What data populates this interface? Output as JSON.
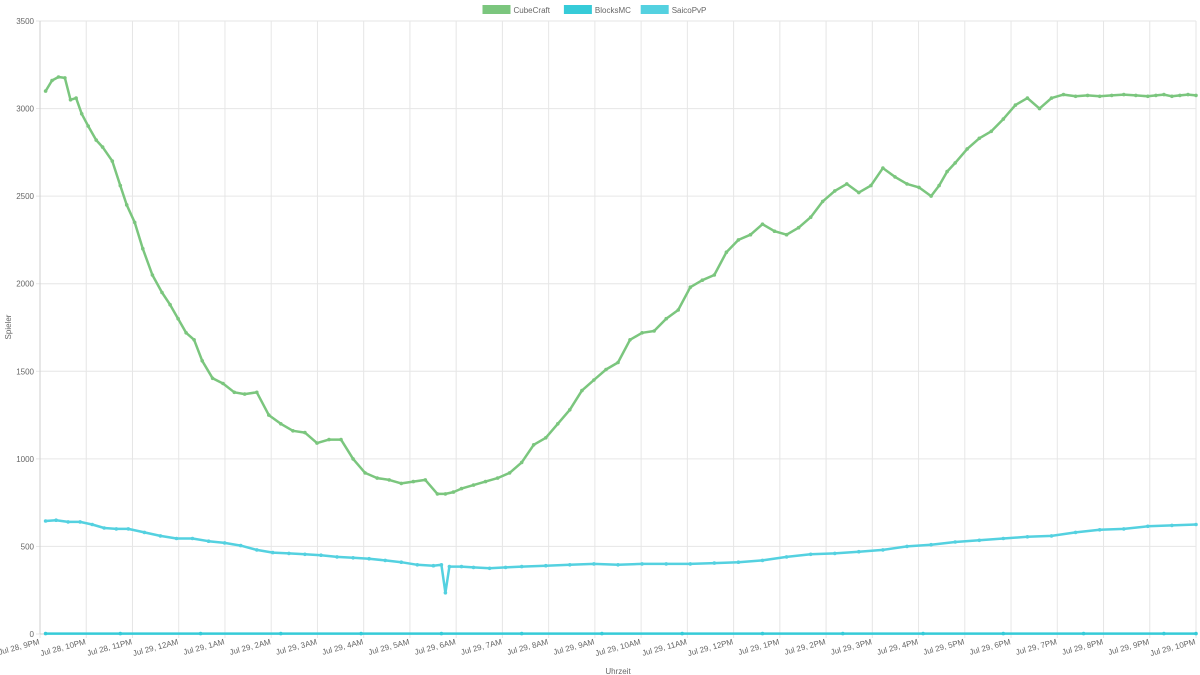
{
  "chart_data": {
    "type": "line",
    "xlabel": "Uhrzeit",
    "ylabel": "Spieler",
    "ylim": [
      0,
      3500
    ],
    "yticks": [
      0,
      500,
      1000,
      1500,
      2000,
      2500,
      3000,
      3500
    ],
    "xlim": [
      0,
      1440
    ],
    "xtick_labels": [
      "Jul 28, 9PM",
      "Jul 28, 10PM",
      "Jul 28, 11PM",
      "Jul 29, 12AM",
      "Jul 29, 1AM",
      "Jul 29, 2AM",
      "Jul 29, 3AM",
      "Jul 29, 4AM",
      "Jul 29, 5AM",
      "Jul 29, 6AM",
      "Jul 29, 7AM",
      "Jul 29, 8AM",
      "Jul 29, 9AM",
      "Jul 29, 10AM",
      "Jul 29, 11AM",
      "Jul 29, 12PM",
      "Jul 29, 1PM",
      "Jul 29, 2PM",
      "Jul 29, 3PM",
      "Jul 29, 4PM",
      "Jul 29, 5PM",
      "Jul 29, 6PM",
      "Jul 29, 7PM",
      "Jul 29, 8PM",
      "Jul 29, 9PM",
      "Jul 29, 10PM"
    ],
    "grid": true,
    "legend_position": "top",
    "series": [
      {
        "name": "CubeCraft",
        "color": "#7bc67e",
        "x": [
          7,
          15,
          23,
          31,
          38,
          45,
          52,
          60,
          70,
          78,
          90,
          100,
          108,
          118,
          128,
          140,
          152,
          162,
          172,
          182,
          192,
          202,
          215,
          228,
          242,
          255,
          270,
          285,
          300,
          315,
          330,
          345,
          360,
          375,
          390,
          405,
          420,
          435,
          450,
          465,
          480,
          495,
          505,
          515,
          525,
          540,
          555,
          570,
          585,
          600,
          615,
          630,
          645,
          660,
          675,
          690,
          705,
          720,
          735,
          750,
          765,
          780,
          795,
          810,
          825,
          840,
          855,
          870,
          885,
          900,
          915,
          930,
          945,
          960,
          975,
          990,
          1005,
          1020,
          1035,
          1050,
          1065,
          1080,
          1095,
          1110,
          1120,
          1130,
          1140,
          1155,
          1170,
          1185,
          1200,
          1215,
          1230,
          1245,
          1260,
          1275,
          1290,
          1305,
          1320,
          1335,
          1350,
          1365,
          1380,
          1390,
          1400,
          1410,
          1420,
          1430,
          1440
        ],
        "values": [
          3100,
          3160,
          3180,
          3175,
          3050,
          3060,
          2970,
          2900,
          2820,
          2780,
          2700,
          2560,
          2450,
          2350,
          2200,
          2050,
          1950,
          1880,
          1800,
          1720,
          1680,
          1560,
          1460,
          1430,
          1380,
          1370,
          1380,
          1250,
          1200,
          1160,
          1150,
          1090,
          1110,
          1110,
          1000,
          920,
          890,
          880,
          860,
          870,
          880,
          800,
          800,
          810,
          830,
          850,
          870,
          890,
          920,
          980,
          1080,
          1120,
          1200,
          1280,
          1390,
          1450,
          1510,
          1550,
          1680,
          1720,
          1730,
          1800,
          1850,
          1980,
          2020,
          2050,
          2180,
          2250,
          2280,
          2340,
          2300,
          2280,
          2320,
          2380,
          2470,
          2530,
          2570,
          2520,
          2560,
          2660,
          2610,
          2570,
          2550,
          2500,
          2560,
          2640,
          2690,
          2770,
          2830,
          2870,
          2940,
          3020,
          3060,
          3000,
          3060,
          3080,
          3070,
          3075,
          3070,
          3075,
          3080,
          3075,
          3070,
          3075,
          3080,
          3070,
          3075,
          3080,
          3075
        ]
      },
      {
        "name": "BlocksMC",
        "color": "#36cbd8",
        "x": [
          7,
          100,
          200,
          300,
          400,
          500,
          600,
          700,
          800,
          900,
          1000,
          1100,
          1200,
          1300,
          1400,
          1440
        ],
        "values": [
          2,
          2,
          2,
          2,
          2,
          2,
          2,
          2,
          2,
          2,
          2,
          2,
          2,
          2,
          2,
          2
        ]
      },
      {
        "name": "SaicoPvP",
        "color": "#54d1e0",
        "x": [
          7,
          20,
          35,
          50,
          65,
          80,
          95,
          110,
          130,
          150,
          170,
          190,
          210,
          230,
          250,
          270,
          290,
          310,
          330,
          350,
          370,
          390,
          410,
          430,
          450,
          470,
          490,
          500,
          505,
          510,
          525,
          540,
          560,
          580,
          600,
          630,
          660,
          690,
          720,
          750,
          780,
          810,
          840,
          870,
          900,
          930,
          960,
          990,
          1020,
          1050,
          1080,
          1110,
          1140,
          1170,
          1200,
          1230,
          1260,
          1290,
          1320,
          1350,
          1380,
          1410,
          1440
        ],
        "values": [
          645,
          650,
          640,
          640,
          625,
          605,
          600,
          600,
          580,
          560,
          545,
          545,
          530,
          520,
          505,
          480,
          465,
          460,
          455,
          450,
          440,
          435,
          430,
          420,
          410,
          395,
          390,
          395,
          235,
          385,
          385,
          380,
          375,
          380,
          385,
          390,
          395,
          400,
          395,
          400,
          400,
          400,
          405,
          410,
          420,
          440,
          455,
          460,
          470,
          480,
          500,
          510,
          525,
          535,
          545,
          555,
          560,
          580,
          595,
          600,
          615,
          620,
          625
        ]
      }
    ]
  }
}
